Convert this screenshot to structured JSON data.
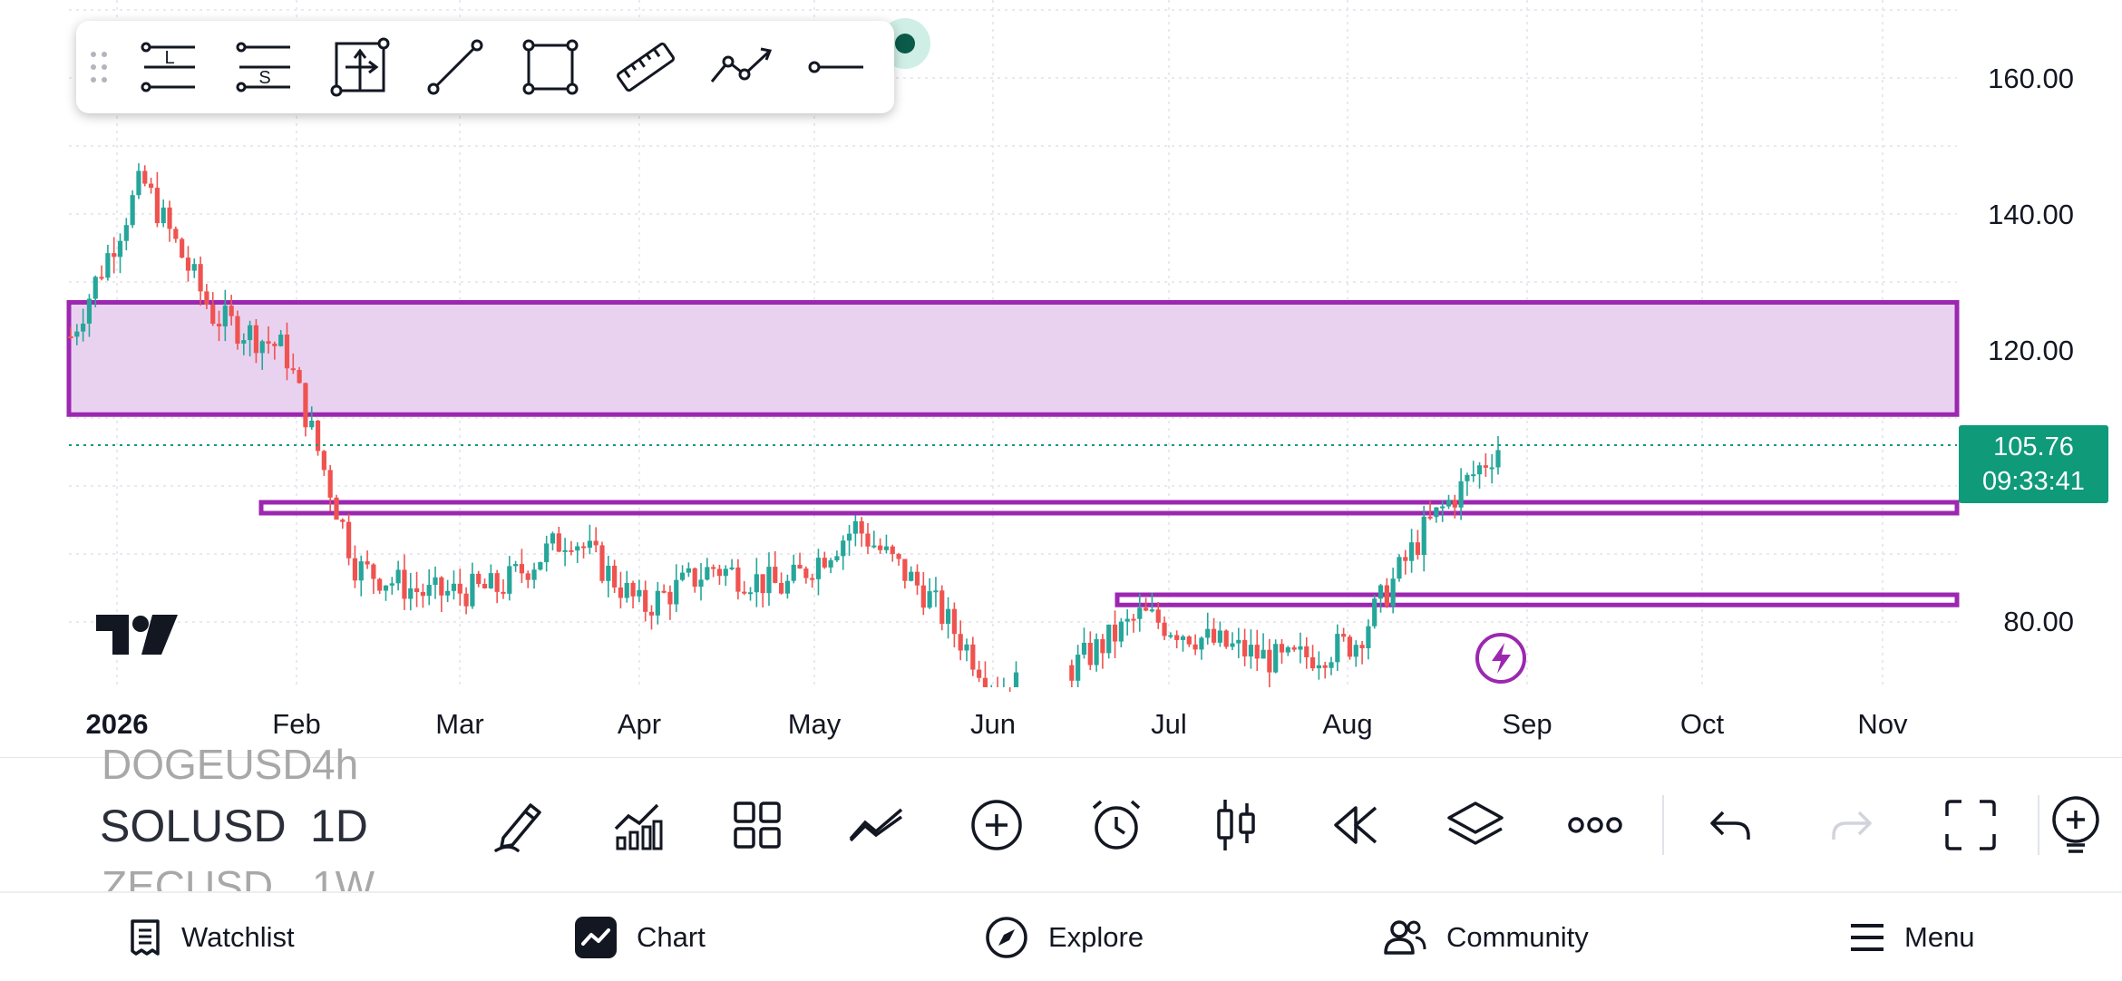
{
  "chart": {
    "price_labels": [
      "160.00",
      "140.00",
      "120.00",
      "80.00"
    ],
    "year_label": "2026",
    "month_labels": [
      "Feb",
      "Mar",
      "Apr",
      "May",
      "Jun",
      "Jul",
      "Aug",
      "Sep",
      "Oct",
      "Nov"
    ],
    "last_price": "105.76",
    "countdown": "09:33:41",
    "colors": {
      "up": "#26a69a",
      "down": "#ef5350",
      "zone_stroke": "#9c27b0",
      "zone_fill": "#e9d2f0",
      "last_price_bg": "#0f9a7a"
    }
  },
  "chart_data": {
    "type": "candlestick",
    "x_range": [
      "2026-01",
      "2026-11"
    ],
    "ylim": [
      70,
      170
    ],
    "close_path": [
      {
        "x": "early Jan",
        "y": 122
      },
      {
        "x": "mid Jan",
        "y": 145
      },
      {
        "x": "late Jan",
        "y": 125
      },
      {
        "x": "end Jan",
        "y": 120
      },
      {
        "x": "early Feb",
        "y": 88
      },
      {
        "x": "Feb",
        "y": 84
      },
      {
        "x": "Mar",
        "y": 85
      },
      {
        "x": "mid Mar",
        "y": 93
      },
      {
        "x": "Apr",
        "y": 82
      },
      {
        "x": "mid Apr",
        "y": 88
      },
      {
        "x": "May",
        "y": 85
      },
      {
        "x": "mid May",
        "y": 94
      },
      {
        "x": "late May",
        "y": 84
      },
      {
        "x": "early Jun",
        "y": 70
      },
      {
        "x": "late Jun",
        "y": 73
      },
      {
        "x": "early Jul",
        "y": 81
      },
      {
        "x": "mid Jul",
        "y": 77
      },
      {
        "x": "Aug",
        "y": 74
      },
      {
        "x": "mid Aug",
        "y": 77
      },
      {
        "x": "late Aug",
        "y": 94
      },
      {
        "x": "end Aug",
        "y": 105.76
      }
    ],
    "zones": [
      {
        "name": "resistance zone",
        "from": 110.5,
        "to": 127
      },
      {
        "name": "level",
        "from": 96,
        "to": 97.6
      },
      {
        "name": "level",
        "from": 82.5,
        "to": 84
      }
    ],
    "last_price": 105.76,
    "grid": true
  },
  "drawing_toolbar": {
    "items": [
      {
        "icon": "long-position-icon",
        "text": "L"
      },
      {
        "icon": "short-position-icon",
        "text": "S"
      },
      {
        "icon": "projection-icon"
      },
      {
        "icon": "trend-line-icon"
      },
      {
        "icon": "rectangle-icon"
      },
      {
        "icon": "ruler-icon"
      },
      {
        "icon": "path-icon"
      },
      {
        "icon": "horizontal-ray-icon"
      }
    ]
  },
  "symbols": {
    "prev": {
      "symbol": "DOGEUSD",
      "interval": "4h"
    },
    "current": {
      "symbol": "SOLUSD",
      "interval": "1D"
    },
    "next": {
      "symbol": "ZECUSD",
      "interval": "1W"
    }
  },
  "tool_row": [
    "drawing-icon",
    "indicators-icon",
    "templates-icon",
    "multi-chart-icon",
    "add-icon",
    "alert-icon",
    "chart-type-icon",
    "replay-icon",
    "layers-icon",
    "more-icon",
    "undo-icon",
    "redo-icon",
    "fullscreen-icon",
    "ideas-icon"
  ],
  "nav": {
    "watchlist": "Watchlist",
    "chart": "Chart",
    "explore": "Explore",
    "community": "Community",
    "menu": "Menu"
  }
}
